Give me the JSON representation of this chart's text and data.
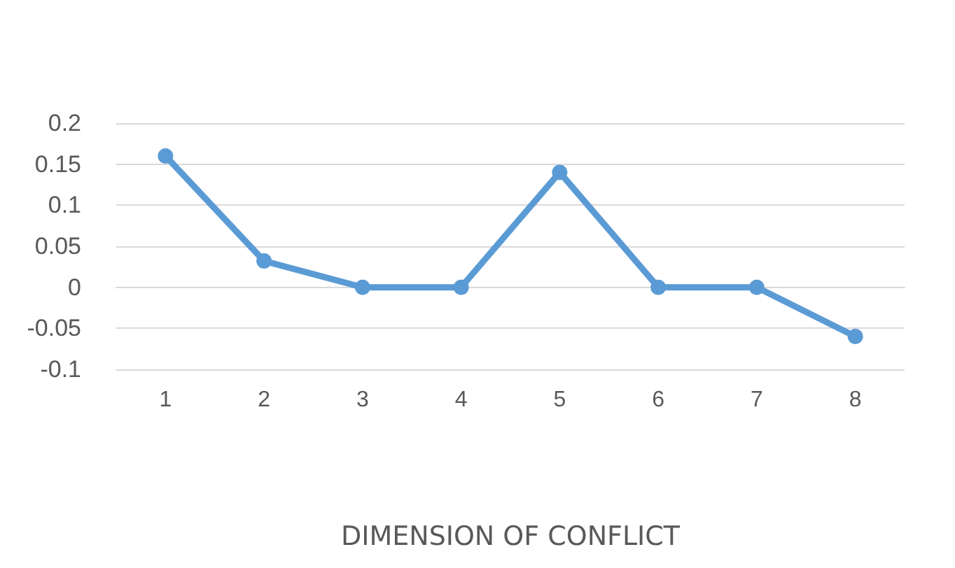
{
  "chart_data": {
    "type": "line",
    "xlabel": "DIMENSION OF CONFLICT",
    "categories": [
      "1",
      "2",
      "3",
      "4",
      "5",
      "6",
      "7",
      "8"
    ],
    "series": [
      {
        "color": "#5b9bd5",
        "values": [
          0.16,
          0.032,
          0,
          0,
          0.14,
          0,
          0,
          -0.06
        ]
      }
    ],
    "ylim": [
      -0.1,
      0.2
    ],
    "yticks": [
      -0.1,
      -0.05,
      0,
      0.05,
      0.1,
      0.15,
      0.2
    ],
    "grid": "y",
    "marker": "circle",
    "line_style": "solid"
  }
}
